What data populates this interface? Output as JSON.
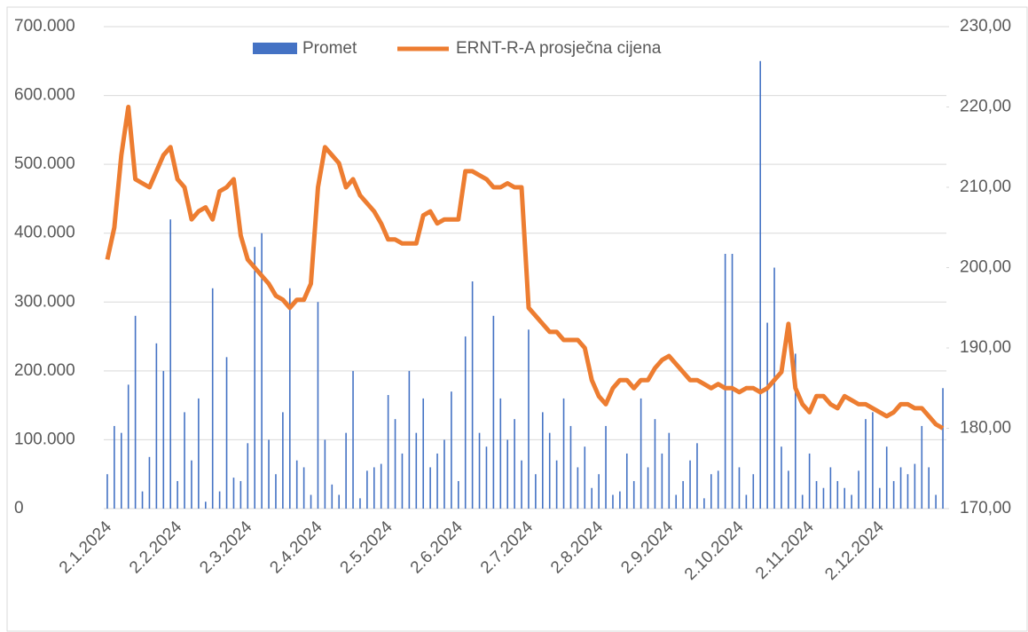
{
  "chart_data": {
    "type": "bar_line",
    "categories": [
      "2.1.2024",
      null,
      null,
      null,
      null,
      null,
      null,
      null,
      null,
      null,
      "2.2.2024",
      null,
      null,
      null,
      null,
      null,
      null,
      null,
      null,
      null,
      "2.3.2024",
      null,
      null,
      null,
      null,
      null,
      null,
      null,
      null,
      null,
      "2.4.2024",
      null,
      null,
      null,
      null,
      null,
      null,
      null,
      null,
      null,
      "2.5.2024",
      null,
      null,
      null,
      null,
      null,
      null,
      null,
      null,
      null,
      "2.6.2024",
      null,
      null,
      null,
      null,
      null,
      null,
      null,
      null,
      null,
      "2.7.2024",
      null,
      null,
      null,
      null,
      null,
      null,
      null,
      null,
      null,
      "2.8.2024",
      null,
      null,
      null,
      null,
      null,
      null,
      null,
      null,
      null,
      "2.9.2024",
      null,
      null,
      null,
      null,
      null,
      null,
      null,
      null,
      null,
      "2.10.2024",
      null,
      null,
      null,
      null,
      null,
      null,
      null,
      null,
      null,
      "2.11.2024",
      null,
      null,
      null,
      null,
      null,
      null,
      null,
      null,
      null,
      "2.12.2024",
      null,
      null,
      null,
      null,
      null,
      null,
      null,
      null,
      null
    ],
    "series": [
      {
        "name": "Promet",
        "type": "bar",
        "color": "#4472c4",
        "values": [
          50000,
          120000,
          110000,
          180000,
          280000,
          25000,
          75000,
          240000,
          200000,
          420000,
          40000,
          140000,
          70000,
          160000,
          10000,
          320000,
          25000,
          220000,
          45000,
          40000,
          95000,
          380000,
          400000,
          100000,
          50000,
          140000,
          320000,
          70000,
          60000,
          20000,
          300000,
          100000,
          35000,
          20000,
          110000,
          200000,
          15000,
          55000,
          60000,
          65000,
          165000,
          130000,
          80000,
          200000,
          110000,
          160000,
          60000,
          80000,
          100000,
          170000,
          40000,
          250000,
          330000,
          110000,
          90000,
          280000,
          160000,
          100000,
          130000,
          70000,
          260000,
          50000,
          140000,
          110000,
          70000,
          160000,
          120000,
          60000,
          90000,
          30000,
          50000,
          120000,
          20000,
          25000,
          80000,
          40000,
          160000,
          60000,
          130000,
          80000,
          110000,
          20000,
          40000,
          70000,
          95000,
          15000,
          50000,
          55000,
          370000,
          370000,
          60000,
          20000,
          50000,
          650000,
          270000,
          350000,
          90000,
          55000,
          225000,
          20000,
          80000,
          40000,
          30000,
          60000,
          40000,
          30000,
          20000,
          55000,
          130000,
          140000,
          30000,
          90000,
          40000,
          60000,
          50000,
          65000,
          120000,
          60000,
          20000,
          175000
        ]
      },
      {
        "name": "ERNT-R-A prosječna cijena",
        "type": "line",
        "axis": "y2",
        "color": "#ed7d31",
        "values": [
          201,
          205,
          214,
          220,
          211,
          210.5,
          210,
          212,
          214,
          215,
          211,
          210,
          206,
          207,
          207.5,
          206,
          209.5,
          210,
          211,
          204,
          201,
          200,
          199,
          198,
          196.5,
          196,
          195,
          196,
          196,
          198,
          210,
          215,
          214,
          213,
          210,
          211,
          209,
          208,
          207,
          205.5,
          203.5,
          203.5,
          203,
          203,
          203,
          206.5,
          207,
          205.5,
          206,
          206,
          206,
          212,
          212,
          211.5,
          211,
          210,
          210,
          210.5,
          210,
          210,
          195,
          194,
          193,
          192,
          192,
          191,
          191,
          191,
          190,
          186,
          184,
          183,
          185,
          186,
          186,
          185,
          186,
          186,
          187.5,
          188.5,
          189,
          188,
          187,
          186,
          186,
          185.5,
          185,
          185.5,
          185,
          185,
          184.5,
          185,
          185,
          184.5,
          185,
          186,
          187,
          193,
          185,
          183,
          182,
          184,
          184,
          183,
          182.5,
          184,
          183.5,
          183,
          183,
          182.5,
          182,
          181.5,
          182,
          183,
          183,
          182.5,
          182.5,
          181.5,
          180.5,
          180
        ]
      }
    ],
    "ylim": [
      0,
      700000
    ],
    "yticks": [
      0,
      {
        "value": 100000,
        "label": "100.000"
      },
      {
        "value": 200000,
        "label": "200.000"
      },
      {
        "value": 300000,
        "label": "300.000"
      },
      {
        "value": 400000,
        "label": "400.000"
      },
      {
        "value": 500000,
        "label": "500.000"
      },
      {
        "value": 600000,
        "label": "600.000"
      },
      {
        "value": 700000,
        "label": "700.000"
      }
    ],
    "y2lim": [
      170,
      230
    ],
    "y2ticks": [
      {
        "value": 170,
        "label": "170,00"
      },
      {
        "value": 180,
        "label": "180,00"
      },
      {
        "value": 190,
        "label": "190,00"
      },
      {
        "value": 200,
        "label": "200,00"
      },
      {
        "value": 210,
        "label": "210,00"
      },
      {
        "value": 220,
        "label": "220,00"
      },
      {
        "value": 230,
        "label": "230,00"
      }
    ],
    "grid": true,
    "legend": "top"
  }
}
